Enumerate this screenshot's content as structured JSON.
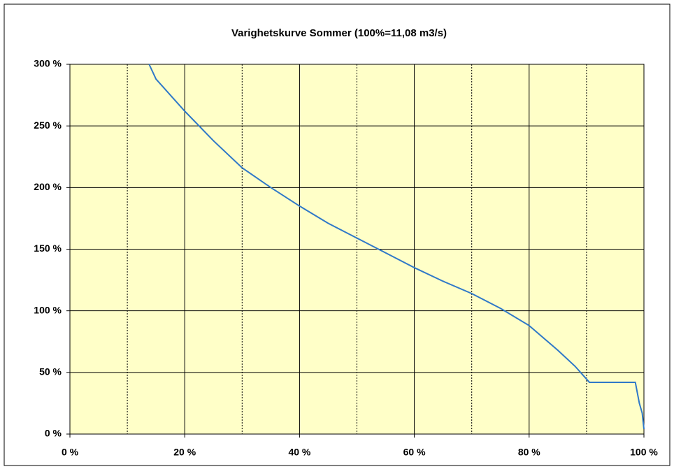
{
  "chart_data": {
    "type": "line",
    "title": "Varighetskurve Sommer (100%=11,08 m3/s)",
    "series": [
      {
        "color": "#2f78c8",
        "x": [
          13.8,
          15,
          20,
          25,
          30,
          35,
          40,
          45,
          50,
          55,
          60,
          65,
          70,
          75,
          80,
          85,
          88,
          90.5,
          95,
          98.5,
          99.2,
          99.7,
          100
        ],
        "values": [
          300,
          288,
          262,
          238,
          216,
          200,
          185,
          171,
          159,
          147,
          135,
          124,
          114,
          102,
          88,
          68,
          55,
          42,
          42,
          42,
          25,
          17,
          4
        ]
      }
    ],
    "xlim": [
      0,
      100
    ],
    "xticks": [
      {
        "value": 0,
        "label": "0 %"
      },
      {
        "value": 20,
        "label": "20 %"
      },
      {
        "value": 40,
        "label": "40 %"
      },
      {
        "value": 60,
        "label": "60 %"
      },
      {
        "value": 80,
        "label": "80 %"
      },
      {
        "value": 100,
        "label": "100 %"
      }
    ],
    "xminor": [
      10,
      30,
      50,
      70,
      90
    ],
    "ylim": [
      0,
      300
    ],
    "yticks": [
      {
        "value": 0,
        "label": "0 %"
      },
      {
        "value": 50,
        "label": "50 %"
      },
      {
        "value": 100,
        "label": "100 %"
      },
      {
        "value": 150,
        "label": "150 %"
      },
      {
        "value": 200,
        "label": "200 %"
      },
      {
        "value": 250,
        "label": "250 %"
      },
      {
        "value": 300,
        "label": "300 %"
      }
    ],
    "grid": true,
    "plot_color": "#ffffc8"
  }
}
